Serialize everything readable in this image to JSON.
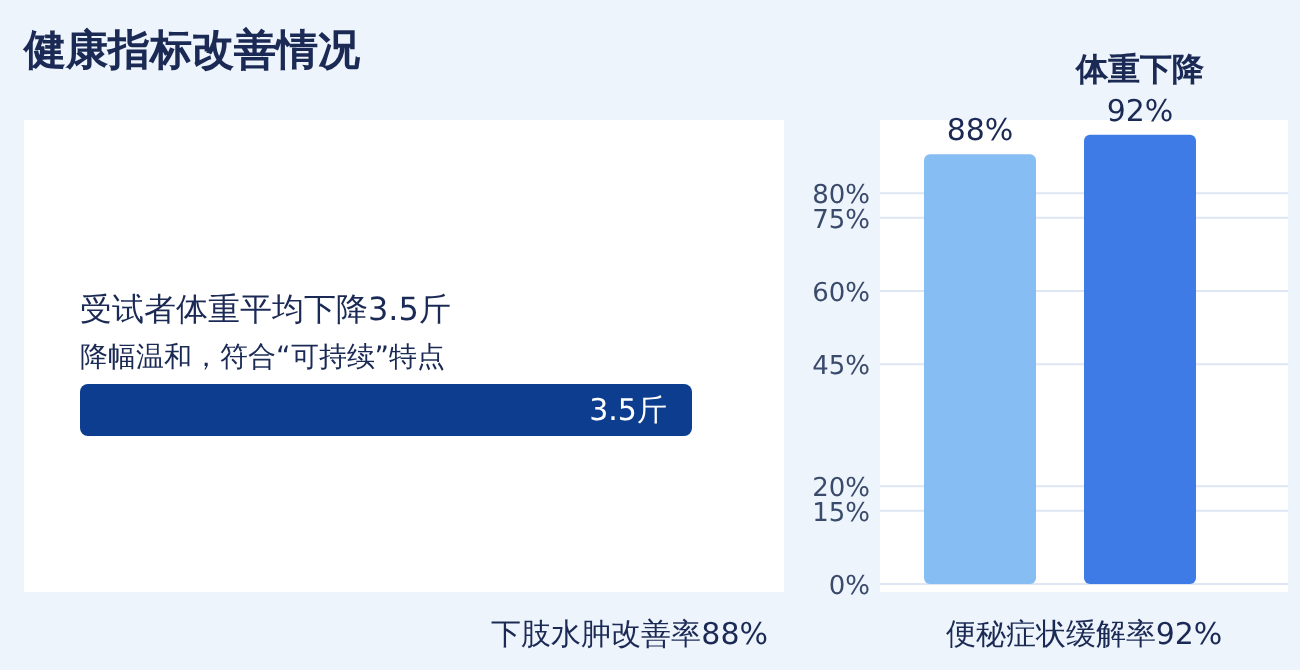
{
  "chart_data": [
    {
      "type": "other",
      "title": "健康指标改善情况",
      "categories": [
        null
      ],
      "values": [
        3.5
      ],
      "value_labels": [
        "3.5斤"
      ],
      "color": "#0d3d8f",
      "annotations": [
        "受试者体重平均下降3.5斤",
        "降幅温和，符合“可持续”特点"
      ],
      "xlabel": "下肢水肿改善率88%"
    },
    {
      "type": "bar",
      "categories": [
        null,
        null
      ],
      "values": [
        88,
        92
      ],
      "colors": [
        "#86bdf2",
        "#3f7be6"
      ],
      "value_labels": [
        "88%",
        "92%"
      ],
      "ylim": [
        0,
        95
      ],
      "yticks": [
        {
          "value": 0,
          "label": "0%"
        },
        {
          "value": 15,
          "label": "15%"
        },
        {
          "value": 20,
          "label": "20%"
        },
        {
          "value": 45,
          "label": "45%"
        },
        {
          "value": 60,
          "label": "60%"
        },
        {
          "value": 75,
          "label": "75%"
        },
        {
          "value": 80,
          "label": "80%"
        }
      ],
      "grid": "y",
      "annotations": [
        "体重下降"
      ],
      "xlabel": "便秘症状缓解率92%"
    }
  ]
}
